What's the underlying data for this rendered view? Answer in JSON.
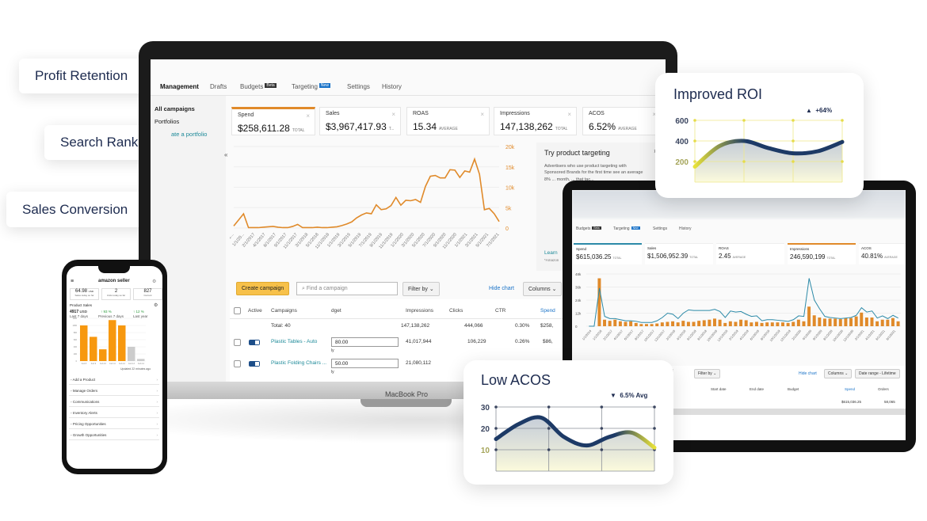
{
  "callouts": [
    "Profit Retention",
    "Search Ranking",
    "Sales Conversion"
  ],
  "laptop": {
    "brand_label": "MacBook Pro",
    "tabs": [
      {
        "label": "Management",
        "active": true
      },
      {
        "label": "Drafts"
      },
      {
        "label": "Budgets",
        "badge": "Beta"
      },
      {
        "label": "Targeting",
        "badge": "New"
      },
      {
        "label": "Settings"
      },
      {
        "label": "History"
      }
    ],
    "sidebar": [
      "All campaigns",
      "Portfolios",
      "ate a portfolio"
    ],
    "metrics": [
      {
        "label": "Spend",
        "value": "$258,611.28",
        "unit": "TOTAL",
        "selected": true
      },
      {
        "label": "Sales",
        "value": "$3,967,417.93",
        "unit": "T..."
      },
      {
        "label": "ROAS",
        "value": "15.34",
        "unit": "AVERAGE"
      },
      {
        "label": "Impressions",
        "value": "147,138,262",
        "unit": "TOTAL"
      },
      {
        "label": "ACOS",
        "value": "6.52%",
        "unit": "AVERAGE"
      }
    ],
    "promo": {
      "title": "Try product targeting",
      "body": "Advertisers who use product targeting with Sponsored Brands for the first time see an average 8% ... month, ... that tac...",
      "link": "Learn",
      "footnote": "*Amazon"
    },
    "toolbar": {
      "create": "Create campaign",
      "search_placeholder": "Find a campaign",
      "filter": "Filter by",
      "hide_chart": "Hide chart",
      "columns": "Columns"
    },
    "table": {
      "headers": [
        "Active",
        "Campaigns",
        "dget",
        "Impressions",
        "Clicks",
        "CTR",
        "Spend"
      ],
      "total": {
        "label": "Total: 40",
        "impressions": "147,138,262",
        "clicks": "444,066",
        "ctr": "0.30%",
        "spend": "$258,"
      },
      "rows": [
        {
          "name": "Plastic Tables - Auto",
          "budget": "80.00",
          "budget_sub": "ly",
          "impressions": "41,017,944",
          "clicks": "106,229",
          "ctr": "0.26%",
          "spend": "$86,"
        },
        {
          "name": "Plastic Folding Chairs ...",
          "budget": "50.00",
          "budget_sub": "ly",
          "impressions": "21,080,112",
          "clicks": "",
          "ctr": "",
          "spend": ""
        }
      ]
    }
  },
  "tablet": {
    "tabs": [
      {
        "label": "Budgets",
        "badge": "Beta"
      },
      {
        "label": "Targeting",
        "badge": "New"
      },
      {
        "label": "Settings"
      },
      {
        "label": "History"
      }
    ],
    "metrics": [
      {
        "label": "Spend",
        "value": "$615,036.25",
        "unit": "TOTAL",
        "accent": "#2c8aa8"
      },
      {
        "label": "Sales",
        "value": "$1,506,952.39",
        "unit": "TOTAL"
      },
      {
        "label": "ROAS",
        "value": "2.45",
        "unit": "AVERAGE"
      },
      {
        "label": "Impressions",
        "value": "246,590,199",
        "unit": "TOTAL",
        "accent": "#e08a2a"
      },
      {
        "label": "ACOS",
        "value": "40.81%",
        "unit": "AVERAGE"
      }
    ],
    "toolbar": {
      "filter": "Filter by",
      "hide_chart": "Hide chart",
      "columns": "Columns",
      "date_range": "Date range - Lifetime"
    },
    "table": {
      "headers": [
        "Start date",
        "End date",
        "Budget",
        "Spend",
        "Orders"
      ],
      "total_spend": "$615,036.25",
      "total_orders": "58,065"
    }
  },
  "phone": {
    "brand": "amazon seller",
    "stats": [
      {
        "value": "64.98",
        "unit": "USD",
        "label": "Sales today so far"
      },
      {
        "value": "2",
        "label": "Units today so far"
      },
      {
        "value": "827",
        "label": "Current"
      }
    ],
    "section": "Product Sales",
    "sales": {
      "value": "4917",
      "unit": "USD",
      "label": "Last 7 days"
    },
    "changes": [
      {
        "value": "↑ 93 %",
        "label": "Previous 7 days"
      },
      {
        "value": "↑ 12 %",
        "label": "Last year"
      }
    ],
    "updated": "Updated 22 minutes ago",
    "menu": [
      "Add a Product",
      "Manage Orders",
      "Communications",
      "Inventory Alerts",
      "Pricing Opportunities",
      "Growth Opportunities"
    ]
  },
  "chart_data": [
    {
      "id": "laptop-spend",
      "type": "line",
      "color": "#e08a2a",
      "ylim": [
        0,
        20000
      ],
      "yticks": [
        "0",
        "5k",
        "10k",
        "15k",
        "20k"
      ],
      "values": [
        500,
        2000,
        3500,
        100,
        100,
        100,
        200,
        300,
        400,
        200,
        100,
        100,
        400,
        900,
        100,
        100,
        100,
        200,
        100,
        100,
        200,
        300,
        600,
        1000,
        1500,
        2500,
        3200,
        3700,
        3500,
        5700,
        4500,
        4700,
        5500,
        7500,
        5600,
        6800,
        6700,
        7000,
        6300,
        10200,
        12700,
        12900,
        12300,
        12300,
        14300,
        14200,
        12400,
        14000,
        13700,
        16900,
        13200,
        4500,
        4800,
        3500,
        1600
      ],
      "xticks": [
        "1...",
        "1/1/20...",
        "2/1/2017",
        "4/1/2017",
        "6/1/2017",
        "9/1/2017",
        "11/1/2017",
        "3/1/2018",
        "5/1/2018",
        "11/1/2018",
        "1/1/2019",
        "3/1/2019",
        "5/1/2019",
        "7/1/2019",
        "9/1/2019",
        "11/1/2019",
        "1/1/2020",
        "3/1/2020",
        "5/1/2020",
        "7/1/2020",
        "9/1/2020",
        "11/1/2020",
        "1/1/2021",
        "3/1/2021",
        "5/1/2021",
        "7/1/2021"
      ]
    },
    {
      "id": "tablet-combo",
      "type": "bar+line",
      "ylim": [
        0,
        48000
      ],
      "yticks": [
        "0",
        "12k",
        "24k",
        "36k",
        "48k"
      ],
      "series": [
        {
          "type": "bar",
          "color": "#e08a2a",
          "values": [
            0,
            0,
            44000,
            6000,
            5000,
            6000,
            4500,
            4000,
            4500,
            3000,
            2000,
            2000,
            2000,
            2500,
            3500,
            4000,
            4500,
            3500,
            5000,
            4000,
            4000,
            5000,
            5500,
            6000,
            7000,
            6000,
            3000,
            4500,
            4000,
            6000,
            5500,
            3500,
            4000,
            3000,
            3500,
            3500,
            3500,
            3500,
            3000,
            4000,
            6000,
            4500,
            18000,
            10000,
            8000,
            7000,
            7000,
            7000,
            6500,
            7500,
            7500,
            9000,
            12500,
            8000,
            8000,
            4500,
            6000,
            6000,
            7500,
            4500
          ]
        },
        {
          "type": "line",
          "color": "#2c8aa8",
          "values": [
            0,
            0,
            35000,
            9000,
            7000,
            7000,
            6000,
            5000,
            5000,
            4500,
            3500,
            3500,
            3500,
            5000,
            8000,
            12000,
            11000,
            7000,
            12000,
            15000,
            14500,
            14500,
            14500,
            14500,
            15500,
            13500,
            8000,
            14000,
            13000,
            13500,
            11000,
            9000,
            9500,
            5000,
            6000,
            6000,
            5500,
            5000,
            4500,
            6000,
            9500,
            9000,
            44000,
            24000,
            16000,
            9000,
            8000,
            7500,
            7000,
            7500,
            8000,
            10000,
            17000,
            13000,
            14000,
            7500,
            9500,
            7000,
            10000,
            7500
          ]
        }
      ],
      "xticks": [
        "1/1/2014",
        "1/1/2016",
        "2/1/2017",
        "4/1/2017",
        "6/1/2017",
        "8/1/2017",
        "10/1/2017",
        "12/1/2017",
        "2/1/2018",
        "4/1/2018",
        "6/1/2018",
        "8/1/2018",
        "10/1/2018",
        "12/1/2018",
        "2/1/2019",
        "4/1/2019",
        "6/1/2019",
        "8/1/2019",
        "10/1/2019",
        "12/1/2019",
        "2/1/2020",
        "4/1/2020",
        "6/1/2020",
        "8/1/2020",
        "10/1/2020",
        "12/1/2020",
        "2/1/2021",
        "4/1/2021",
        "6/1/2021",
        "8/1/2021"
      ]
    },
    {
      "id": "phone-sales",
      "type": "bar",
      "ylim": [
        0,
        1200
      ],
      "yticks": [
        "0",
        "200",
        "400",
        "600",
        "800",
        "1000",
        "1200"
      ],
      "categories": [
        "Feb 8",
        "Feb 9",
        "Feb 10",
        "Feb 11",
        "Feb 12",
        "Feb 13",
        "Feb 14"
      ],
      "values": [
        1000,
        680,
        330,
        1150,
        1000,
        400,
        60
      ],
      "colors": [
        "#f7980f",
        "#f7980f",
        "#f7980f",
        "#f7980f",
        "#f7980f",
        "#cccccc",
        "#cccccc"
      ]
    },
    {
      "id": "roi",
      "type": "line",
      "title": "Improved ROI",
      "annotation": "+64%",
      "trend": "up",
      "yticks": [
        "200",
        "400",
        "600"
      ],
      "ylim": [
        0,
        600
      ],
      "values": [
        150,
        350,
        400,
        330,
        280,
        300,
        390
      ]
    },
    {
      "id": "acos",
      "type": "line",
      "title": "Low ACOS",
      "annotation": "6.5% Avg",
      "trend": "down",
      "yticks": [
        "10",
        "20",
        "30"
      ],
      "ylim": [
        0,
        30
      ],
      "values": [
        15,
        22,
        25,
        16,
        12,
        16,
        18,
        11
      ]
    }
  ]
}
